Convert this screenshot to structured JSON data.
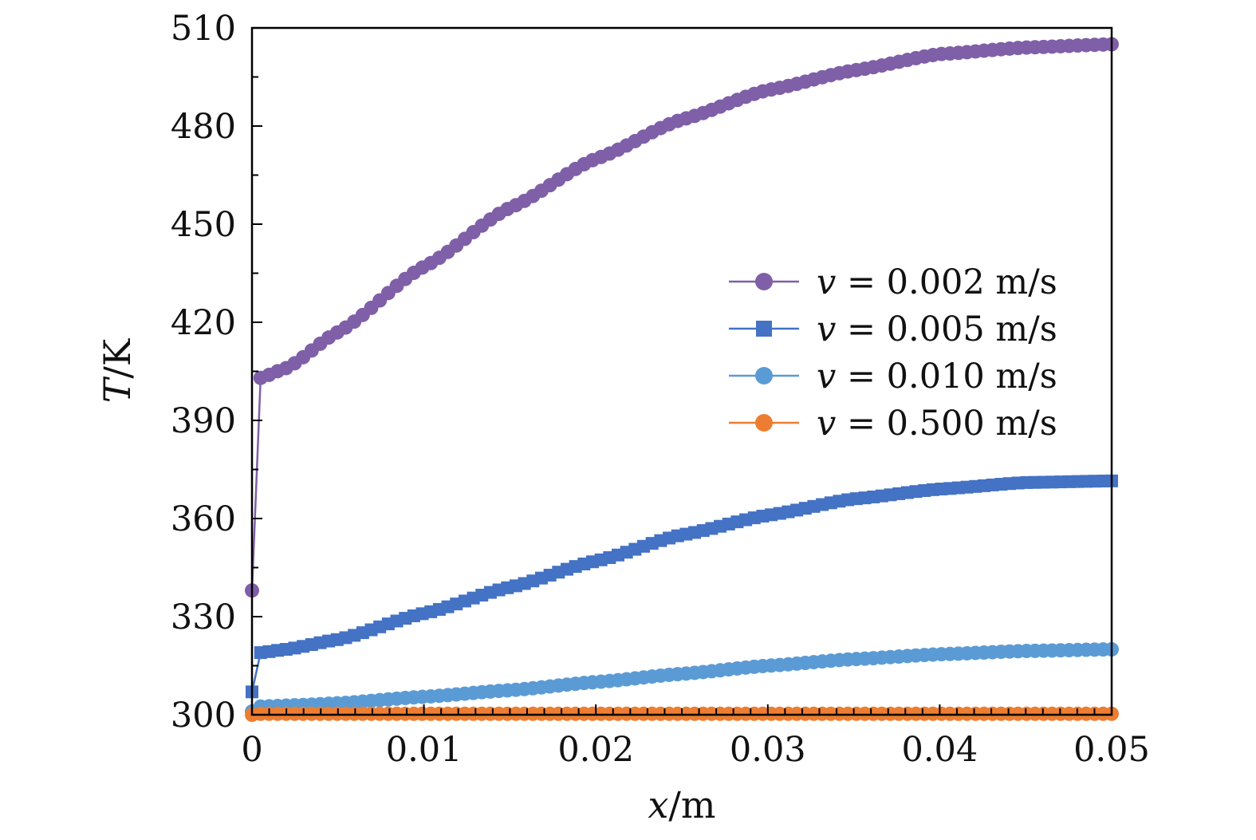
{
  "chart_data": {
    "type": "line",
    "title": "",
    "xlabel_var": "x",
    "xlabel_unit": "/m",
    "ylabel_var": "T",
    "ylabel_unit": "/K",
    "xlim": [
      0,
      0.05
    ],
    "ylim": [
      300,
      510
    ],
    "xticks": [
      0,
      0.01,
      0.02,
      0.03,
      0.04,
      0.05
    ],
    "xtick_labels": [
      "0",
      "0.01",
      "0.02",
      "0.03",
      "0.04",
      "0.05"
    ],
    "yticks": [
      300,
      330,
      360,
      390,
      420,
      450,
      480,
      510
    ],
    "ytick_labels": [
      "300",
      "330",
      "360",
      "390",
      "420",
      "450",
      "480",
      "510"
    ],
    "legend_position": "center-right",
    "series": [
      {
        "name": "v = 0.002 m/s",
        "var": "v",
        "value": "= 0.002 m/s",
        "color": "#7F5FA8",
        "marker": "circle",
        "start_point": [
          0,
          338
        ],
        "profile": [
          [
            0.0005,
            403
          ],
          [
            0.002,
            406
          ],
          [
            0.005,
            417
          ],
          [
            0.01,
            437
          ],
          [
            0.015,
            455
          ],
          [
            0.02,
            470
          ],
          [
            0.025,
            482
          ],
          [
            0.03,
            491
          ],
          [
            0.035,
            497
          ],
          [
            0.04,
            502
          ],
          [
            0.045,
            504
          ],
          [
            0.05,
            505
          ]
        ]
      },
      {
        "name": "v = 0.005 m/s",
        "var": "v",
        "value": "= 0.005 m/s",
        "color": "#4472C4",
        "marker": "square",
        "start_point": [
          0,
          307
        ],
        "profile": [
          [
            0.0005,
            319
          ],
          [
            0.002,
            320
          ],
          [
            0.005,
            323
          ],
          [
            0.01,
            331
          ],
          [
            0.015,
            339
          ],
          [
            0.02,
            347
          ],
          [
            0.025,
            355
          ],
          [
            0.03,
            361
          ],
          [
            0.035,
            366
          ],
          [
            0.04,
            369
          ],
          [
            0.045,
            371
          ],
          [
            0.05,
            371.5
          ]
        ]
      },
      {
        "name": "v = 0.010 m/s",
        "var": "v",
        "value": "= 0.010 m/s",
        "color": "#5B9BD5",
        "marker": "circle",
        "start_point": [
          0,
          301
        ],
        "profile": [
          [
            0.0005,
            302.5
          ],
          [
            0.003,
            303
          ],
          [
            0.005,
            303.5
          ],
          [
            0.01,
            305.5
          ],
          [
            0.015,
            307.5
          ],
          [
            0.02,
            310
          ],
          [
            0.025,
            312.5
          ],
          [
            0.03,
            315
          ],
          [
            0.035,
            317
          ],
          [
            0.04,
            318.5
          ],
          [
            0.045,
            319.5
          ],
          [
            0.05,
            320
          ]
        ]
      },
      {
        "name": "v = 0.500 m/s",
        "var": "v",
        "value": "= 0.500 m/s",
        "color": "#ED7D31",
        "marker": "circle",
        "start_point": [
          0,
          300
        ],
        "profile": [
          [
            0.0005,
            300.3
          ],
          [
            0.05,
            300.3
          ]
        ]
      }
    ]
  }
}
